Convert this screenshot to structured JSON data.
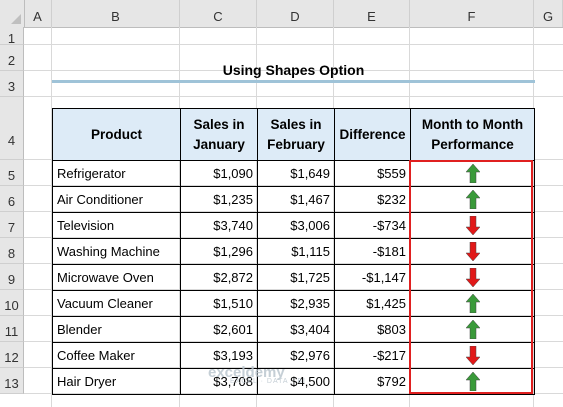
{
  "columns": [
    "A",
    "B",
    "C",
    "D",
    "E",
    "F",
    "G"
  ],
  "rows": [
    "1",
    "2",
    "3",
    "4",
    "5",
    "6",
    "7",
    "8",
    "9",
    "10",
    "11",
    "12",
    "13"
  ],
  "title": "Using Shapes Option",
  "table": {
    "headers": {
      "product": "Product",
      "jan_1": "Sales in",
      "jan_2": "January",
      "feb_1": "Sales in",
      "feb_2": "February",
      "diff": "Difference",
      "perf_1": "Month to Month",
      "perf_2": "Performance"
    },
    "rows": [
      {
        "product": "Refrigerator",
        "jan": "$1,090",
        "feb": "$1,649",
        "diff": "$559",
        "trend": "up"
      },
      {
        "product": "Air Conditioner",
        "jan": "$1,235",
        "feb": "$1,467",
        "diff": "$232",
        "trend": "up"
      },
      {
        "product": "Television",
        "jan": "$3,740",
        "feb": "$3,006",
        "diff": "-$734",
        "trend": "down"
      },
      {
        "product": "Washing Machine",
        "jan": "$1,296",
        "feb": "$1,115",
        "diff": "-$181",
        "trend": "down"
      },
      {
        "product": "Microwave Oven",
        "jan": "$2,872",
        "feb": "$1,725",
        "diff": "-$1,147",
        "trend": "down"
      },
      {
        "product": "Vacuum Cleaner",
        "jan": "$1,510",
        "feb": "$2,935",
        "diff": "$1,425",
        "trend": "up"
      },
      {
        "product": "Blender",
        "jan": "$2,601",
        "feb": "$3,404",
        "diff": "$803",
        "trend": "up"
      },
      {
        "product": "Coffee Maker",
        "jan": "$3,193",
        "feb": "$2,976",
        "diff": "-$217",
        "trend": "down"
      },
      {
        "product": "Hair Dryer",
        "jan": "$3,708",
        "feb": "$4,500",
        "diff": "$792",
        "trend": "up"
      }
    ]
  },
  "colors": {
    "up_arrow": "#3a9a3a",
    "down_arrow": "#e11919",
    "header_fill": "#ddebf7",
    "highlight": "#e02020"
  },
  "icons": {
    "up": "green-up-arrow-icon",
    "down": "red-down-arrow-icon"
  },
  "watermark": {
    "name": "exceldemy",
    "tagline": "EXCEL · DATA · BI"
  }
}
